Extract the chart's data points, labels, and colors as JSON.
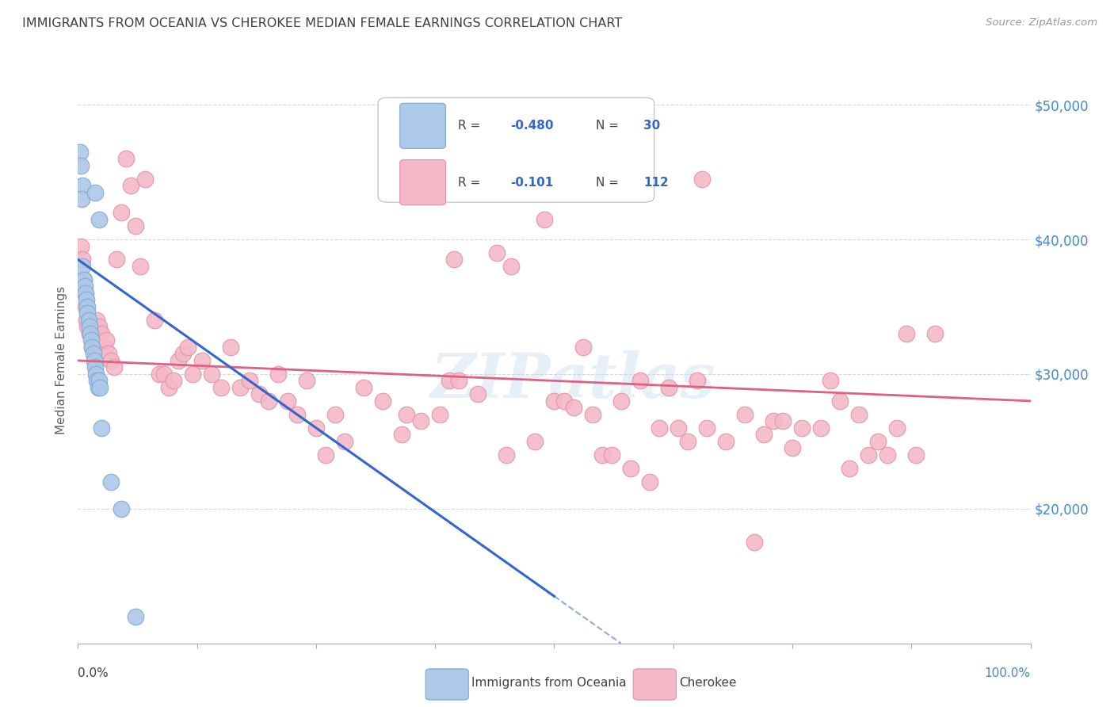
{
  "title": "IMMIGRANTS FROM OCEANIA VS CHEROKEE MEDIAN FEMALE EARNINGS CORRELATION CHART",
  "source": "Source: ZipAtlas.com",
  "ylabel": "Median Female Earnings",
  "yticks": [
    20000,
    30000,
    40000,
    50000
  ],
  "ytick_labels": [
    "$20,000",
    "$30,000",
    "$40,000",
    "$50,000"
  ],
  "watermark": "ZIPatlas",
  "blue_scatter": [
    [
      0.2,
      46500
    ],
    [
      0.3,
      45500
    ],
    [
      0.5,
      44000
    ],
    [
      0.4,
      43000
    ],
    [
      1.8,
      43500
    ],
    [
      2.2,
      41500
    ],
    [
      0.5,
      38000
    ],
    [
      0.6,
      37000
    ],
    [
      0.7,
      36500
    ],
    [
      0.8,
      36000
    ],
    [
      0.9,
      35500
    ],
    [
      1.0,
      35000
    ],
    [
      1.0,
      34500
    ],
    [
      1.1,
      34000
    ],
    [
      1.2,
      33500
    ],
    [
      1.3,
      33000
    ],
    [
      1.4,
      32500
    ],
    [
      1.5,
      32000
    ],
    [
      1.6,
      31500
    ],
    [
      1.7,
      31000
    ],
    [
      1.8,
      30500
    ],
    [
      1.9,
      30000
    ],
    [
      2.0,
      29500
    ],
    [
      2.1,
      29000
    ],
    [
      2.2,
      29500
    ],
    [
      2.3,
      29000
    ],
    [
      2.5,
      26000
    ],
    [
      3.5,
      22000
    ],
    [
      4.5,
      20000
    ],
    [
      6.0,
      12000
    ]
  ],
  "pink_scatter": [
    [
      0.3,
      39500
    ],
    [
      0.5,
      38500
    ],
    [
      0.6,
      37000
    ],
    [
      0.7,
      36000
    ],
    [
      0.8,
      35000
    ],
    [
      0.9,
      34000
    ],
    [
      1.0,
      33500
    ],
    [
      1.2,
      33000
    ],
    [
      1.5,
      32000
    ],
    [
      1.8,
      32500
    ],
    [
      2.0,
      34000
    ],
    [
      2.2,
      33500
    ],
    [
      2.5,
      33000
    ],
    [
      2.8,
      32000
    ],
    [
      3.0,
      32500
    ],
    [
      3.2,
      31500
    ],
    [
      3.5,
      31000
    ],
    [
      3.8,
      30500
    ],
    [
      4.0,
      38500
    ],
    [
      4.5,
      42000
    ],
    [
      5.0,
      46000
    ],
    [
      5.5,
      44000
    ],
    [
      6.0,
      41000
    ],
    [
      6.5,
      38000
    ],
    [
      7.0,
      44500
    ],
    [
      8.0,
      34000
    ],
    [
      8.5,
      30000
    ],
    [
      9.0,
      30000
    ],
    [
      9.5,
      29000
    ],
    [
      10.0,
      29500
    ],
    [
      10.5,
      31000
    ],
    [
      11.0,
      31500
    ],
    [
      11.5,
      32000
    ],
    [
      12.0,
      30000
    ],
    [
      13.0,
      31000
    ],
    [
      14.0,
      30000
    ],
    [
      15.0,
      29000
    ],
    [
      16.0,
      32000
    ],
    [
      17.0,
      29000
    ],
    [
      18.0,
      29500
    ],
    [
      19.0,
      28500
    ],
    [
      20.0,
      28000
    ],
    [
      21.0,
      30000
    ],
    [
      22.0,
      28000
    ],
    [
      23.0,
      27000
    ],
    [
      24.0,
      29500
    ],
    [
      25.0,
      26000
    ],
    [
      26.0,
      24000
    ],
    [
      27.0,
      27000
    ],
    [
      28.0,
      25000
    ],
    [
      30.0,
      29000
    ],
    [
      32.0,
      28000
    ],
    [
      34.0,
      25500
    ],
    [
      34.5,
      27000
    ],
    [
      36.0,
      26500
    ],
    [
      38.0,
      27000
    ],
    [
      39.0,
      29500
    ],
    [
      39.5,
      38500
    ],
    [
      40.0,
      29500
    ],
    [
      42.0,
      28500
    ],
    [
      44.0,
      39000
    ],
    [
      45.0,
      24000
    ],
    [
      45.5,
      38000
    ],
    [
      48.0,
      25000
    ],
    [
      49.0,
      41500
    ],
    [
      50.0,
      28000
    ],
    [
      51.0,
      28000
    ],
    [
      52.0,
      27500
    ],
    [
      53.0,
      32000
    ],
    [
      54.0,
      27000
    ],
    [
      55.0,
      24000
    ],
    [
      56.0,
      24000
    ],
    [
      57.0,
      28000
    ],
    [
      58.0,
      23000
    ],
    [
      59.0,
      29500
    ],
    [
      60.0,
      22000
    ],
    [
      61.0,
      26000
    ],
    [
      62.0,
      29000
    ],
    [
      63.0,
      26000
    ],
    [
      64.0,
      25000
    ],
    [
      65.0,
      29500
    ],
    [
      65.5,
      44500
    ],
    [
      66.0,
      26000
    ],
    [
      68.0,
      25000
    ],
    [
      70.0,
      27000
    ],
    [
      71.0,
      17500
    ],
    [
      72.0,
      25500
    ],
    [
      73.0,
      26500
    ],
    [
      74.0,
      26500
    ],
    [
      75.0,
      24500
    ],
    [
      76.0,
      26000
    ],
    [
      78.0,
      26000
    ],
    [
      79.0,
      29500
    ],
    [
      80.0,
      28000
    ],
    [
      81.0,
      23000
    ],
    [
      82.0,
      27000
    ],
    [
      83.0,
      24000
    ],
    [
      84.0,
      25000
    ],
    [
      85.0,
      24000
    ],
    [
      86.0,
      26000
    ],
    [
      87.0,
      33000
    ],
    [
      88.0,
      24000
    ],
    [
      90.0,
      33000
    ]
  ],
  "blue_line": {
    "x0": 0,
    "y0": 38500,
    "x1": 50,
    "y1": 13500
  },
  "blue_line_dash_end": 57,
  "pink_line": {
    "x0": 0,
    "y0": 31000,
    "x1": 100,
    "y1": 28000
  },
  "xlim": [
    0,
    100
  ],
  "ylim": [
    10000,
    52000
  ],
  "background_color": "#ffffff",
  "grid_color": "#d8d8d8",
  "title_color": "#404040",
  "ylabel_color": "#606060",
  "source_color": "#999999",
  "blue_line_color": "#3366cc",
  "pink_line_color": "#e06080",
  "scatter_blue_color": "#adc8e8",
  "scatter_blue_edge": "#7fa8d0",
  "scatter_pink_color": "#f5b8c8",
  "scatter_pink_edge": "#e090a8",
  "right_tick_color": "#4488cc",
  "watermark_color": "#c5d8ee",
  "legend_R_color": "#3366cc"
}
